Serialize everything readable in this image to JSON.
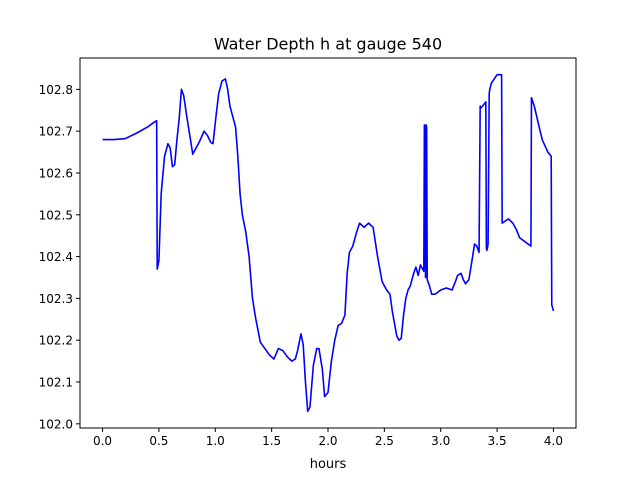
{
  "chart_data": {
    "type": "line",
    "title": "Water Depth h at gauge 540",
    "xlabel": "hours",
    "ylabel": "",
    "xlim": [
      -0.2,
      4.2
    ],
    "ylim": [
      101.99,
      102.875
    ],
    "xticks": [
      0.0,
      0.5,
      1.0,
      1.5,
      2.0,
      2.5,
      3.0,
      3.5,
      4.0
    ],
    "yticks": [
      102.0,
      102.1,
      102.2,
      102.3,
      102.4,
      102.5,
      102.6,
      102.7,
      102.8
    ],
    "xtick_labels": [
      "0.0",
      "0.5",
      "1.0",
      "1.5",
      "2.0",
      "2.5",
      "3.0",
      "3.5",
      "4.0"
    ],
    "ytick_labels": [
      "102.0",
      "102.1",
      "102.2",
      "102.3",
      "102.4",
      "102.5",
      "102.6",
      "102.7",
      "102.8"
    ],
    "grid": false,
    "legend": "none",
    "series": [
      {
        "color": "#0000ff",
        "x": [
          0.0,
          0.1,
          0.2,
          0.3,
          0.4,
          0.45,
          0.48,
          0.485,
          0.5,
          0.52,
          0.55,
          0.58,
          0.6,
          0.62,
          0.64,
          0.66,
          0.68,
          0.7,
          0.72,
          0.75,
          0.78,
          0.8,
          0.83,
          0.86,
          0.9,
          0.93,
          0.96,
          0.98,
          1.0,
          1.03,
          1.06,
          1.09,
          1.11,
          1.13,
          1.15,
          1.18,
          1.2,
          1.22,
          1.24,
          1.27,
          1.3,
          1.33,
          1.36,
          1.4,
          1.44,
          1.48,
          1.52,
          1.56,
          1.6,
          1.64,
          1.68,
          1.71,
          1.73,
          1.76,
          1.78,
          1.8,
          1.82,
          1.84,
          1.87,
          1.9,
          1.92,
          1.95,
          1.97,
          2.0,
          2.03,
          2.06,
          2.09,
          2.12,
          2.15,
          2.17,
          2.19,
          2.22,
          2.25,
          2.28,
          2.32,
          2.36,
          2.4,
          2.44,
          2.48,
          2.52,
          2.55,
          2.57,
          2.59,
          2.61,
          2.63,
          2.65,
          2.67,
          2.69,
          2.71,
          2.73,
          2.76,
          2.78,
          2.8,
          2.82,
          2.84,
          2.85,
          2.855,
          2.86,
          2.865,
          2.87,
          2.875,
          2.88,
          2.9,
          2.92,
          2.95,
          3.0,
          3.05,
          3.1,
          3.13,
          3.15,
          3.18,
          3.2,
          3.22,
          3.25,
          3.28,
          3.3,
          3.32,
          3.34,
          3.35,
          3.355,
          3.37,
          3.4,
          3.405,
          3.41,
          3.42,
          3.43,
          3.435,
          3.45,
          3.5,
          3.54,
          3.545,
          3.6,
          3.64,
          3.67,
          3.7,
          3.75,
          3.8,
          3.805,
          3.83,
          3.86,
          3.9,
          3.95,
          3.98,
          3.985,
          4.0
        ],
        "y": [
          102.68,
          102.68,
          102.682,
          102.695,
          102.71,
          102.72,
          102.725,
          102.37,
          102.39,
          102.55,
          102.64,
          102.67,
          102.66,
          102.615,
          102.62,
          102.68,
          102.73,
          102.8,
          102.785,
          102.73,
          102.68,
          102.645,
          102.66,
          102.675,
          102.7,
          102.69,
          102.673,
          102.67,
          102.72,
          102.79,
          102.82,
          102.825,
          102.8,
          102.76,
          102.74,
          102.71,
          102.64,
          102.55,
          102.5,
          102.46,
          102.4,
          102.3,
          102.25,
          102.195,
          102.18,
          102.165,
          102.155,
          102.18,
          102.175,
          102.16,
          102.15,
          102.155,
          102.175,
          102.215,
          102.19,
          102.1,
          102.03,
          102.04,
          102.14,
          102.18,
          102.18,
          102.13,
          102.065,
          102.075,
          102.15,
          102.2,
          102.235,
          102.24,
          102.26,
          102.36,
          102.41,
          102.425,
          102.455,
          102.48,
          102.47,
          102.48,
          102.47,
          102.4,
          102.34,
          102.32,
          102.31,
          102.27,
          102.24,
          102.21,
          102.2,
          102.205,
          102.26,
          102.3,
          102.32,
          102.33,
          102.36,
          102.375,
          102.355,
          102.38,
          102.37,
          102.365,
          102.715,
          102.71,
          102.35,
          102.715,
          102.71,
          102.345,
          102.33,
          102.31,
          102.31,
          102.32,
          102.325,
          102.32,
          102.34,
          102.355,
          102.36,
          102.345,
          102.335,
          102.345,
          102.395,
          102.43,
          102.425,
          102.41,
          102.76,
          102.755,
          102.76,
          102.77,
          102.42,
          102.415,
          102.43,
          102.79,
          102.8,
          102.815,
          102.835,
          102.835,
          102.48,
          102.49,
          102.48,
          102.465,
          102.445,
          102.435,
          102.425,
          102.78,
          102.76,
          102.725,
          102.68,
          102.65,
          102.64,
          102.285,
          102.27
        ]
      }
    ]
  }
}
